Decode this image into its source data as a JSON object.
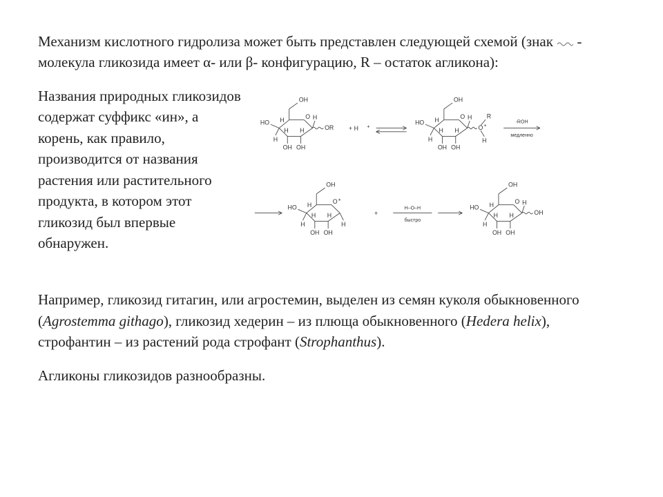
{
  "paragraph_intro": "Механизм кислотного гидролиза может быть представлен следующей схемой (знак",
  "paragraph_intro_tail": " - молекула гликозида имеет α- или β- конфигурацию, R – остаток агликона):",
  "paragraph_side": "Названия природных гликозидов содержат суффикс «ин», а корень, как правило, производится от названия растения или растительного продукта, в котором этот гликозид был впервые обнаружен.",
  "paragraph_example_a": "Например, гликозид гитагин, или агростемин, выделен из семян куколя обыкновенного (",
  "italic_1": "Agrostemma githago",
  "paragraph_example_b": "), гликозид хедерин – из плюща обыкновенного (",
  "italic_2": "Hedera helix",
  "paragraph_example_c": "), строфантин – из растений рода строфант (",
  "italic_3": "Strophanthus",
  "paragraph_example_d": ").",
  "paragraph_final": "Агликоны гликозидов разнообразны.",
  "chem_labels": {
    "OH": "OH",
    "H": "H",
    "HO": "HO",
    "O": "O",
    "OR": "OR",
    "R": "R",
    "plus_Hplus": "+  H",
    "sup_plus": "+",
    "minus_ROH": "-ROH",
    "slow": "медленно",
    "plus": "+",
    "H_O_H": "H–O–H",
    "fast": "быстро",
    "arrow_color": "#555555",
    "line_color": "#444444",
    "text_color": "#333333"
  },
  "chem_style": {
    "viewbox_w": 620,
    "viewbox_h": 310,
    "font_family": "Arial, sans-serif",
    "font_size": 10,
    "font_size_small": 8,
    "stroke_width": 1
  }
}
